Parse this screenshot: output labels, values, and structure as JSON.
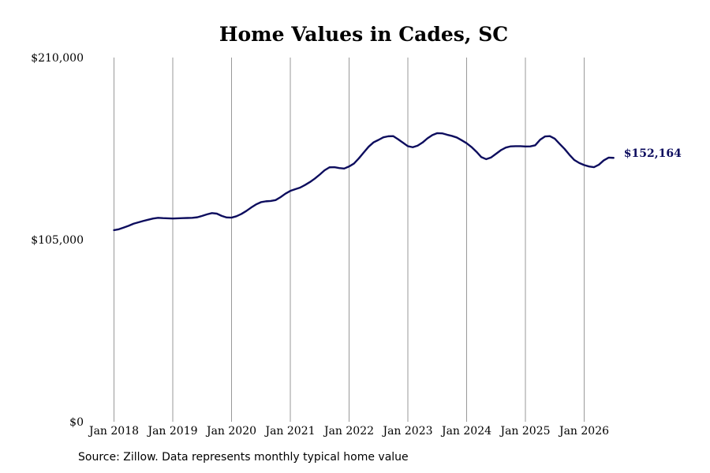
{
  "chart_data": {
    "type": "line",
    "title": "Home Values in Cades, SC",
    "xlabel": "",
    "ylabel": "",
    "y_tick_labels": [
      "$0",
      "$105,000",
      "$210,000"
    ],
    "y_ticks": [
      0,
      105000,
      210000
    ],
    "ylim": [
      0,
      210000
    ],
    "x_tick_labels": [
      "Jan 2018",
      "Jan 2019",
      "Jan 2020",
      "Jan 2021",
      "Jan 2022",
      "Jan 2023",
      "Jan 2024",
      "Jan 2025",
      "Jan 2026"
    ],
    "x_ticks": [
      "2018-01",
      "2019-01",
      "2020-01",
      "2021-01",
      "2022-01",
      "2023-01",
      "2024-01",
      "2025-01",
      "2026-01"
    ],
    "xlim": [
      "2018-01",
      "2026-07"
    ],
    "grid": "vertical",
    "line_color": "#0d0d5e",
    "end_label": "$152,164",
    "series": [
      {
        "x": [
          "2018-01",
          "2018-02",
          "2018-03",
          "2018-04",
          "2018-05",
          "2018-06",
          "2018-07",
          "2018-08",
          "2018-09",
          "2018-10",
          "2018-11",
          "2018-12",
          "2019-01",
          "2019-02",
          "2019-03",
          "2019-04",
          "2019-05",
          "2019-06",
          "2019-07",
          "2019-08",
          "2019-09",
          "2019-10",
          "2019-11",
          "2019-12",
          "2020-01",
          "2020-02",
          "2020-03",
          "2020-04",
          "2020-05",
          "2020-06",
          "2020-07",
          "2020-08",
          "2020-09",
          "2020-10",
          "2020-11",
          "2020-12",
          "2021-01",
          "2021-02",
          "2021-03",
          "2021-04",
          "2021-05",
          "2021-06",
          "2021-07",
          "2021-08",
          "2021-09",
          "2021-10",
          "2021-11",
          "2021-12",
          "2022-01",
          "2022-02",
          "2022-03",
          "2022-04",
          "2022-05",
          "2022-06",
          "2022-07",
          "2022-08",
          "2022-09",
          "2022-10",
          "2022-11",
          "2022-12",
          "2023-01",
          "2023-02",
          "2023-03",
          "2023-04",
          "2023-05",
          "2023-06",
          "2023-07",
          "2023-08",
          "2023-09",
          "2023-10",
          "2023-11",
          "2023-12",
          "2024-01",
          "2024-02",
          "2024-03",
          "2024-04",
          "2024-05",
          "2024-06",
          "2024-07",
          "2024-08",
          "2024-09",
          "2024-10",
          "2024-11",
          "2024-12",
          "2025-01",
          "2025-02",
          "2025-03",
          "2025-04",
          "2025-05",
          "2025-06",
          "2025-07",
          "2025-08",
          "2025-09",
          "2025-10",
          "2025-11",
          "2025-12",
          "2026-01",
          "2026-02",
          "2026-03",
          "2026-04",
          "2026-05",
          "2026-06",
          "2026-07"
        ],
        "y": [
          110500,
          111000,
          112000,
          113000,
          114200,
          115000,
          115800,
          116500,
          117200,
          117600,
          117400,
          117300,
          117200,
          117300,
          117400,
          117500,
          117600,
          117900,
          118700,
          119600,
          120300,
          120000,
          118700,
          117800,
          117700,
          118500,
          119800,
          121500,
          123500,
          125300,
          126600,
          127100,
          127300,
          127800,
          129500,
          131500,
          133100,
          134100,
          135000,
          136500,
          138200,
          140200,
          142500,
          145000,
          146700,
          146800,
          146300,
          146000,
          147200,
          148900,
          151900,
          155300,
          158600,
          161100,
          162500,
          164000,
          164600,
          164700,
          162900,
          160900,
          158900,
          158300,
          159200,
          161000,
          163400,
          165300,
          166400,
          166300,
          165500,
          164800,
          163900,
          162300,
          160600,
          158400,
          155700,
          152600,
          151400,
          152400,
          154500,
          156600,
          158100,
          158800,
          158900,
          158900,
          158700,
          158800,
          159400,
          162600,
          164500,
          164700,
          163200,
          160200,
          157300,
          153900,
          150900,
          149200,
          148000,
          147200,
          146800,
          148200,
          150700,
          152300,
          152164
        ]
      }
    ]
  },
  "source_note": "Source: Zillow. Data represents monthly typical home value"
}
